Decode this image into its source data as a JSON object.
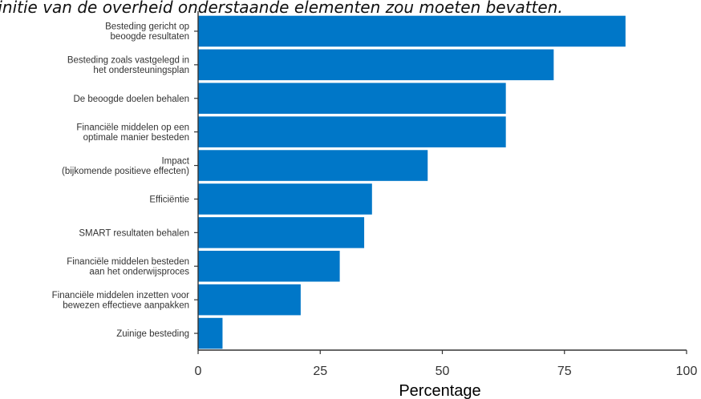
{
  "caption": "finitie van de overheid onderstaande elementen zou moeten bevatten.",
  "colors": {
    "bar": "#0077c8",
    "axis": "#333333"
  },
  "chart_data": {
    "type": "bar",
    "orientation": "horizontal",
    "categories": [
      [
        "Besteding gericht op",
        "beoogde resultaten"
      ],
      [
        "Besteding zoals vastgelegd in",
        "het ondersteuningsplan"
      ],
      [
        "De beoogde doelen behalen"
      ],
      [
        "Financiële middelen op een",
        "optimale manier besteden"
      ],
      [
        "Impact",
        "(bijkomende positieve effecten)"
      ],
      [
        "Efficiëntie"
      ],
      [
        "SMART resultaten behalen"
      ],
      [
        "Financiële middelen besteden",
        "aan het onderwijsproces"
      ],
      [
        "Financiële middelen inzetten voor",
        "bewezen effectieve aanpakken"
      ],
      [
        "Zuinige besteding"
      ]
    ],
    "values": [
      87.5,
      72.8,
      63,
      63,
      47,
      35.6,
      34,
      29,
      21,
      5
    ],
    "xlabel": "Percentage",
    "ylabel": "",
    "xlim": [
      0,
      100
    ],
    "xticks": [
      0,
      25,
      50,
      75,
      100
    ],
    "grid": false
  }
}
